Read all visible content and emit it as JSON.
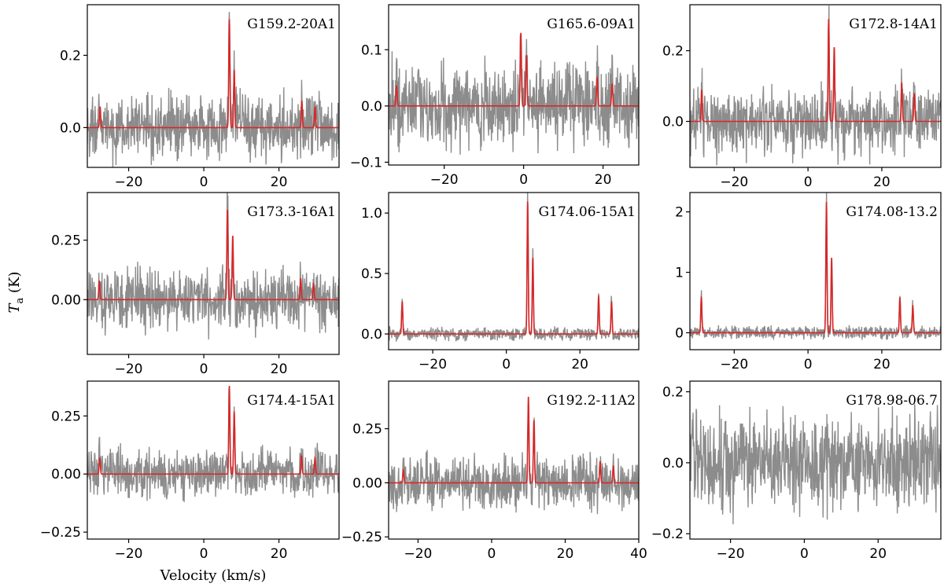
{
  "chart_data": {
    "type": "line",
    "xlabel": "Velocity (km/s)",
    "ylabel": "T",
    "ylabel_sub": "a",
    "ylabel_unit": " (K)",
    "colors": {
      "observed": "#8c8c8c",
      "model": "#d62728"
    },
    "panels": [
      {
        "label": "G159.2-20A1",
        "xlim": [
          -31,
          36
        ],
        "ylim": [
          -0.11,
          0.34
        ],
        "xticks": [
          -20,
          0,
          20
        ],
        "xtick_labels": [
          "−20",
          "0",
          "20"
        ],
        "yticks": [
          0.0,
          0.2
        ],
        "ytick_labels": [
          "0.0",
          "0.2"
        ],
        "noise": 0.045,
        "model_peaks": [
          {
            "v": -27.6,
            "amp": 0.058
          },
          {
            "v": 6.8,
            "amp": 0.3
          },
          {
            "v": 8.1,
            "amp": 0.16
          },
          {
            "v": 26.1,
            "amp": 0.075
          },
          {
            "v": 29.6,
            "amp": 0.058
          }
        ]
      },
      {
        "label": "G165.6-09A1",
        "xlim": [
          -34,
          29
        ],
        "ylim": [
          -0.105,
          0.18
        ],
        "xticks": [
          -20,
          0,
          20
        ],
        "xtick_labels": [
          "−20",
          "0",
          "20"
        ],
        "yticks": [
          -0.1,
          0.0,
          0.1
        ],
        "ytick_labels": [
          "−0.1",
          "0.0",
          "0.1"
        ],
        "noise": 0.035,
        "model_peaks": [
          {
            "v": -32.0,
            "amp": 0.036
          },
          {
            "v": -0.7,
            "amp": 0.13
          },
          {
            "v": 0.7,
            "amp": 0.09
          },
          {
            "v": 18.5,
            "amp": 0.05
          },
          {
            "v": 22.3,
            "amp": 0.04
          }
        ]
      },
      {
        "label": "G172.8-14A1",
        "xlim": [
          -32,
          36
        ],
        "ylim": [
          -0.13,
          0.33
        ],
        "xticks": [
          -20,
          0,
          20
        ],
        "xtick_labels": [
          "−20",
          "0",
          "20"
        ],
        "yticks": [
          0.0,
          0.2
        ],
        "ytick_labels": [
          "0.0",
          "0.2"
        ],
        "noise": 0.045,
        "model_peaks": [
          {
            "v": -28.8,
            "amp": 0.09
          },
          {
            "v": 5.6,
            "amp": 0.29
          },
          {
            "v": 7.1,
            "amp": 0.21
          },
          {
            "v": 25.4,
            "amp": 0.11
          },
          {
            "v": 28.8,
            "amp": 0.08
          }
        ]
      },
      {
        "label": "G173.3-16A1",
        "xlim": [
          -31,
          36
        ],
        "ylim": [
          -0.23,
          0.45
        ],
        "xticks": [
          -20,
          0,
          20
        ],
        "xtick_labels": [
          "−20",
          "0",
          "20"
        ],
        "yticks": [
          0.0,
          0.25
        ],
        "ytick_labels": [
          "0.00",
          "0.25"
        ],
        "noise": 0.06,
        "model_peaks": [
          {
            "v": -27.8,
            "amp": 0.08
          },
          {
            "v": 6.3,
            "amp": 0.38
          },
          {
            "v": 7.7,
            "amp": 0.27
          },
          {
            "v": 25.8,
            "amp": 0.09
          },
          {
            "v": 29.2,
            "amp": 0.07
          }
        ]
      },
      {
        "label": "G174.06-15A1",
        "xlim": [
          -32,
          36
        ],
        "ylim": [
          -0.13,
          1.17
        ],
        "xticks": [
          -20,
          0,
          20
        ],
        "xtick_labels": [
          "−20",
          "0",
          "20"
        ],
        "yticks": [
          0.0,
          0.5,
          1.0
        ],
        "ytick_labels": [
          "0.0",
          "0.5",
          "1.0"
        ],
        "noise": 0.025,
        "model_peaks": [
          {
            "v": -28.3,
            "amp": 0.27
          },
          {
            "v": 5.8,
            "amp": 1.1
          },
          {
            "v": 7.2,
            "amp": 0.63
          },
          {
            "v": 25.1,
            "amp": 0.31
          },
          {
            "v": 28.6,
            "amp": 0.27
          }
        ]
      },
      {
        "label": "G174.08-13.2",
        "xlim": [
          -32,
          36
        ],
        "ylim": [
          -0.28,
          2.32
        ],
        "xticks": [
          -20,
          0,
          20
        ],
        "xtick_labels": [
          "−20",
          "0",
          "20"
        ],
        "yticks": [
          0,
          1,
          2
        ],
        "ytick_labels": [
          "0",
          "1",
          "2"
        ],
        "noise": 0.05,
        "model_peaks": [
          {
            "v": -28.9,
            "amp": 0.6
          },
          {
            "v": 5.0,
            "amp": 2.17
          },
          {
            "v": 6.4,
            "amp": 1.25
          },
          {
            "v": 24.9,
            "amp": 0.58
          },
          {
            "v": 28.4,
            "amp": 0.45
          }
        ]
      },
      {
        "label": "G174.4-15A1",
        "xlim": [
          -31,
          36
        ],
        "ylim": [
          -0.28,
          0.4
        ],
        "xticks": [
          -20,
          0,
          20
        ],
        "xtick_labels": [
          "−20",
          "0",
          "20"
        ],
        "yticks": [
          -0.25,
          0.0,
          0.25
        ],
        "ytick_labels": [
          "−0.25",
          "0.00",
          "0.25"
        ],
        "noise": 0.05,
        "model_peaks": [
          {
            "v": -27.7,
            "amp": 0.07
          },
          {
            "v": 6.8,
            "amp": 0.38
          },
          {
            "v": 8.1,
            "amp": 0.27
          },
          {
            "v": 26.0,
            "amp": 0.08
          },
          {
            "v": 29.6,
            "amp": 0.07
          }
        ]
      },
      {
        "label": "G192.2-11A2",
        "xlim": [
          -28,
          40
        ],
        "ylim": [
          -0.26,
          0.47
        ],
        "xticks": [
          -20,
          0,
          20,
          40
        ],
        "xtick_labels": [
          "−20",
          "0",
          "20",
          "40"
        ],
        "yticks": [
          -0.25,
          0.0,
          0.25
        ],
        "ytick_labels": [
          "−0.25",
          "0.00",
          "0.25"
        ],
        "noise": 0.06,
        "model_peaks": [
          {
            "v": -24.0,
            "amp": 0.06
          },
          {
            "v": 10.0,
            "amp": 0.4
          },
          {
            "v": 11.5,
            "amp": 0.29
          },
          {
            "v": 29.5,
            "amp": 0.1
          },
          {
            "v": 33.1,
            "amp": 0.08
          }
        ]
      },
      {
        "label": "G178.98-06.7",
        "xlim": [
          -31,
          37
        ],
        "ylim": [
          -0.215,
          0.23
        ],
        "xticks": [
          -20,
          0,
          20
        ],
        "xtick_labels": [
          "−20",
          "0",
          "20"
        ],
        "yticks": [
          -0.2,
          0.0,
          0.2
        ],
        "ytick_labels": [
          "−0.2",
          "0.0",
          "0.2"
        ],
        "noise": 0.065,
        "model_peaks": []
      }
    ]
  }
}
